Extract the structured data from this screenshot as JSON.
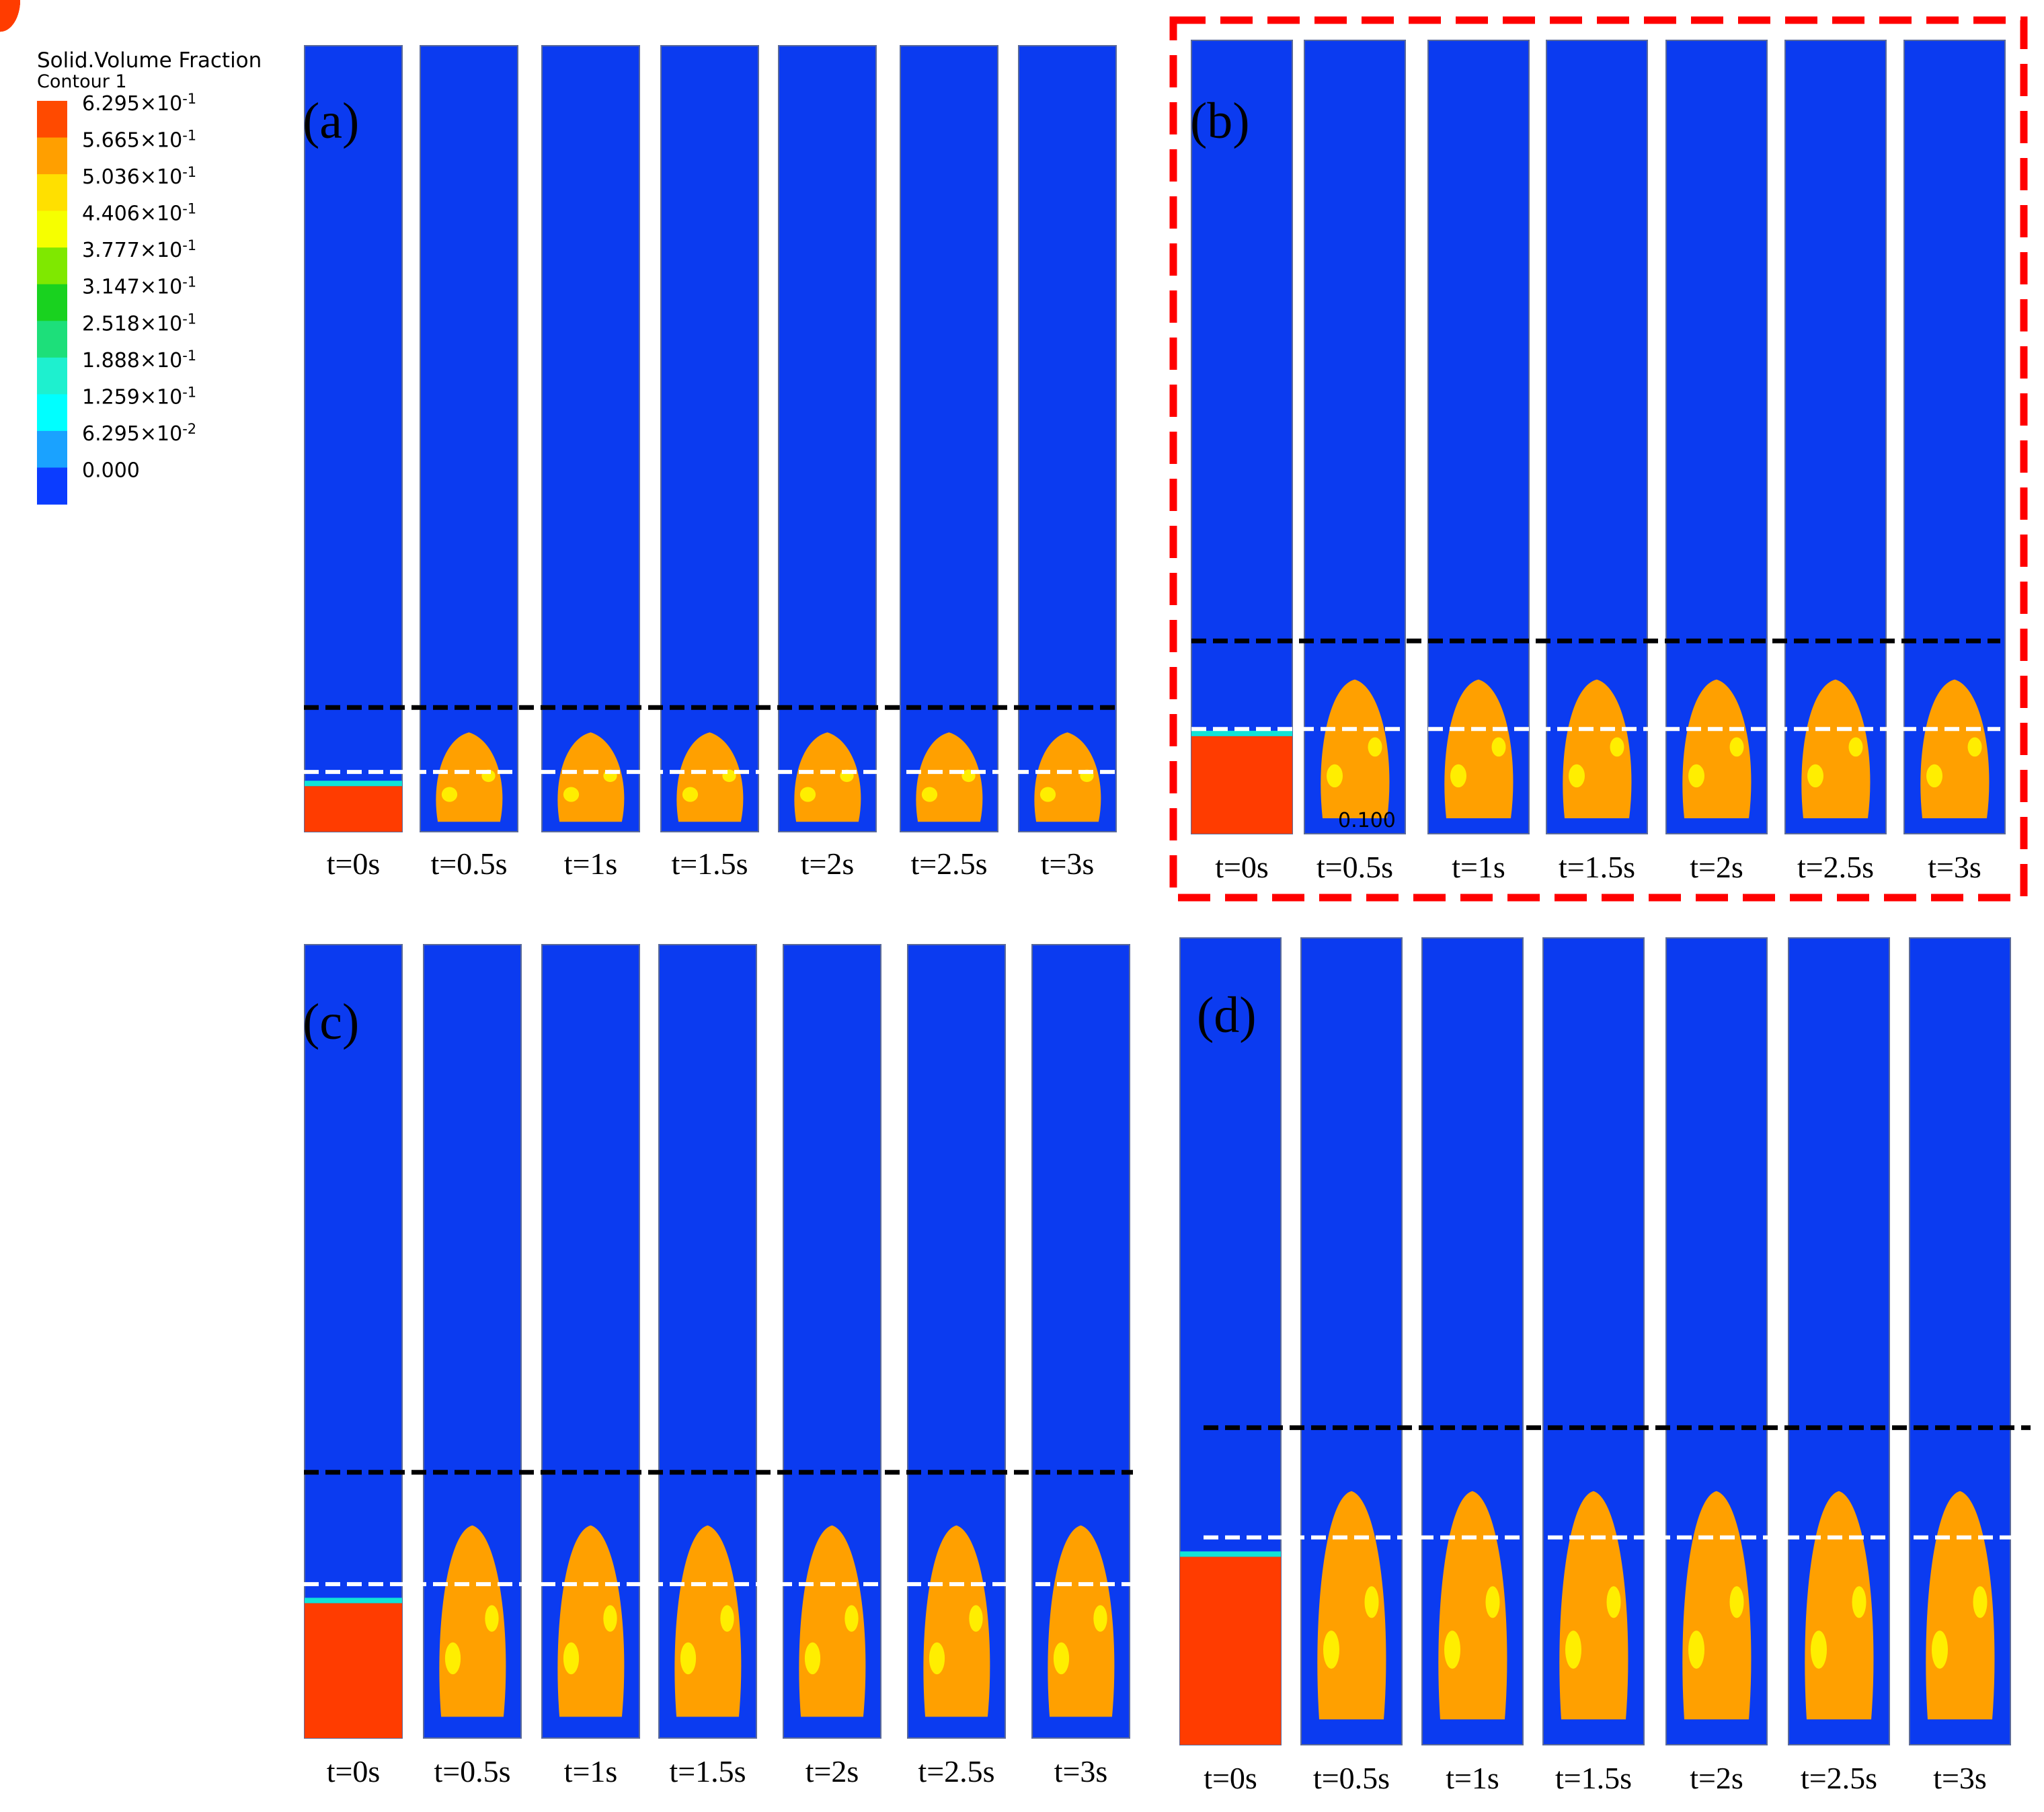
{
  "legend": {
    "title": "Solid.Volume Fraction",
    "subtitle": "Contour 1",
    "levels": [
      {
        "mantissa": "6.295",
        "exp": "-1",
        "color": "#ff4a00"
      },
      {
        "mantissa": "5.665",
        "exp": "-1",
        "color": "#ff9f00"
      },
      {
        "mantissa": "5.036",
        "exp": "-1",
        "color": "#ffe000"
      },
      {
        "mantissa": "4.406",
        "exp": "-1",
        "color": "#f6ff00"
      },
      {
        "mantissa": "3.777",
        "exp": "-1",
        "color": "#7fe800"
      },
      {
        "mantissa": "3.147",
        "exp": "-1",
        "color": "#19d21f"
      },
      {
        "mantissa": "2.518",
        "exp": "-1",
        "color": "#1ddf7a"
      },
      {
        "mantissa": "1.888",
        "exp": "-1",
        "color": "#1ef0cf"
      },
      {
        "mantissa": "1.259",
        "exp": "-1",
        "color": "#00ffff"
      },
      {
        "mantissa": "6.295",
        "exp": "-2",
        "color": "#1aa2ff"
      },
      {
        "mantissa": "0.000",
        "exp": "",
        "color": "#0b3cff"
      }
    ],
    "times_sign": "×10"
  },
  "colors": {
    "blue": "#0b3bf0",
    "orange": "#ffa000",
    "red": "#ff3c00",
    "yellow": "#ffee00",
    "green": "#22d22a",
    "cyan": "#11e3d6",
    "lightblue": "#1b9cf0",
    "highlight": "#ff0000"
  },
  "time_labels": [
    "t=0s",
    "t=0.5s",
    "t=1s",
    "t=1.5s",
    "t=2s",
    "t=2.5s",
    "t=3s"
  ],
  "bed_level": {
    "total_height": 1.0,
    "initial_fill": 0.12
  },
  "panels": [
    {
      "id": "a",
      "label": "(a)",
      "highlighted": false,
      "initial_fill": 0.058,
      "expanded_height": 0.158,
      "initial_marker": 0.076,
      "expanded_marker": 0.158
    },
    {
      "id": "b",
      "label": "(b)",
      "highlighted": true,
      "initial_fill": 0.123,
      "expanded_height": 0.243,
      "initial_marker": 0.132,
      "expanded_marker": 0.243,
      "annotation": "0.100"
    },
    {
      "id": "c",
      "label": "(c)",
      "highlighted": false,
      "initial_fill": 0.17,
      "expanded_height": 0.335,
      "initial_marker": 0.194,
      "expanded_marker": 0.335
    },
    {
      "id": "d",
      "label": "(d)",
      "highlighted": false,
      "initial_fill": 0.233,
      "expanded_height": 0.393,
      "initial_marker": 0.257,
      "expanded_marker": 0.393
    }
  ]
}
